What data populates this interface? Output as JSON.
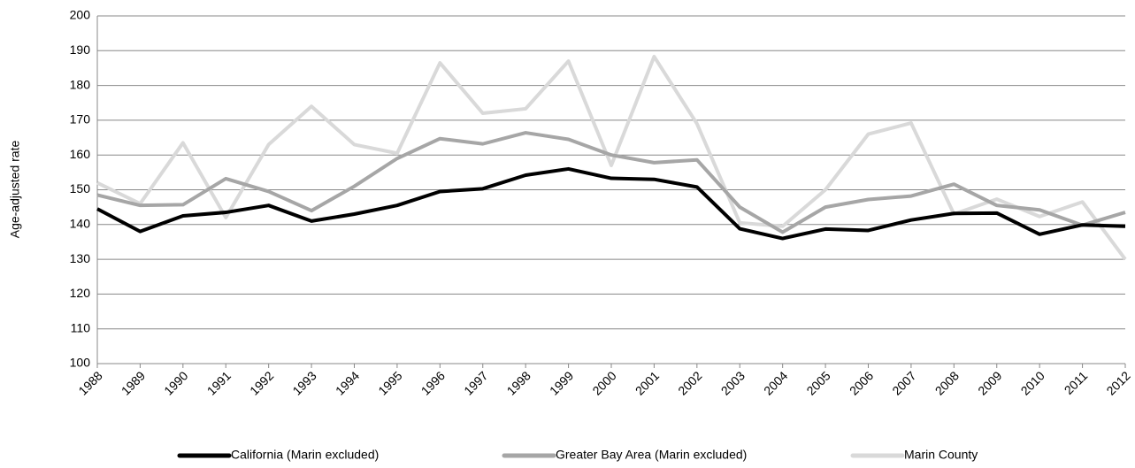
{
  "chart_data": {
    "type": "line",
    "y_label": "Age-adjusted rate",
    "categories": [
      "1988",
      "1989",
      "1990",
      "1991",
      "1992",
      "1993",
      "1994",
      "1995",
      "1996",
      "1997",
      "1998",
      "1999",
      "2000",
      "2001",
      "2002",
      "2003",
      "2004",
      "2005",
      "2006",
      "2007",
      "2008",
      "2009",
      "2010",
      "2011",
      "2012"
    ],
    "series": [
      {
        "name": "California (Marin excluded)",
        "color": "#000000",
        "values": [
          144.5,
          138,
          142.5,
          143.5,
          145.5,
          141,
          143,
          145.5,
          149.5,
          150.3,
          154.2,
          156,
          153.3,
          153,
          150.8,
          138.8,
          136,
          138.7,
          138.3,
          141.3,
          143.2,
          143.3,
          137.2,
          139.9,
          139.5
        ]
      },
      {
        "name": "Greater Bay Area (Marin excluded)",
        "color": "#a6a6a6",
        "values": [
          148.5,
          145.5,
          145.7,
          153.2,
          149.5,
          144,
          151,
          159,
          164.7,
          163.2,
          166.4,
          164.5,
          160,
          157.8,
          158.6,
          145,
          137.8,
          145,
          147.2,
          148.2,
          151.6,
          145.5,
          144.2,
          139.8,
          143.5
        ]
      },
      {
        "name": "Marin County",
        "color": "#d9d9d9",
        "values": [
          152,
          146,
          163.5,
          142,
          163,
          174,
          163,
          160.5,
          186.5,
          172,
          173.3,
          187,
          157,
          188.3,
          169,
          140.5,
          139.5,
          150,
          166,
          169.2,
          143,
          147.3,
          142.3,
          146.5,
          130
        ]
      }
    ],
    "ylim": [
      100,
      200
    ],
    "yticks": [
      100,
      110,
      120,
      130,
      140,
      150,
      160,
      170,
      180,
      190,
      200
    ],
    "grid": true,
    "legend": "bottom"
  }
}
